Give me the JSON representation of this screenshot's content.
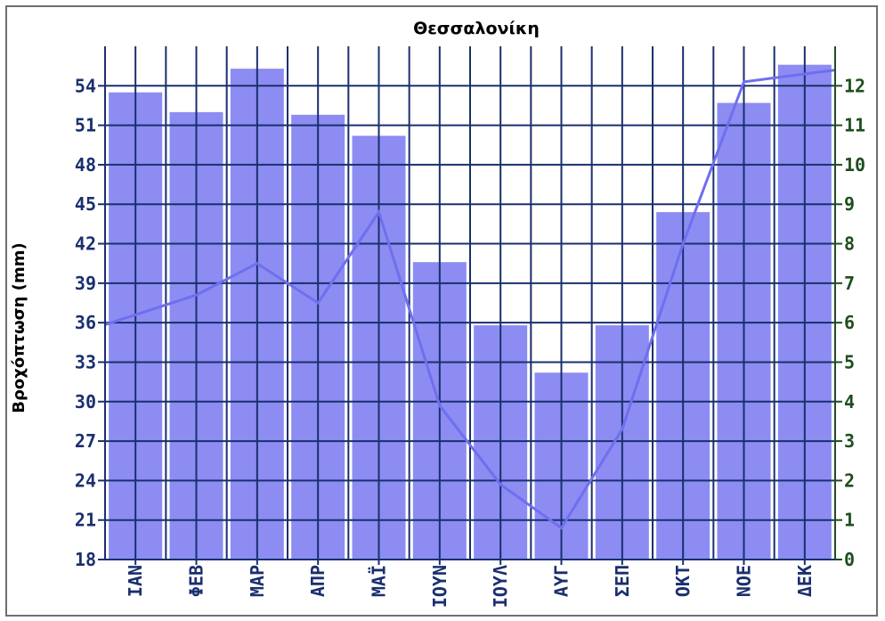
{
  "chart_data": {
    "type": "bar",
    "title": "Θεσσαλονίκη",
    "ylabel": "Βροχόπτωση (mm)",
    "categories": [
      "ΙΑΝ",
      "ΦΕΒ",
      "ΜΑΡ",
      "ΑΠΡ",
      "ΜΑΪ",
      "ΙΟΥΝ",
      "ΙΟΥΛ",
      "ΑΥΓ",
      "ΣΕΠ",
      "ΟΚΤ",
      "ΝΟΕ",
      "ΔΕΚ"
    ],
    "series": [
      {
        "type": "bar",
        "axis": "left",
        "values": [
          53.5,
          52.0,
          55.3,
          51.8,
          50.2,
          40.6,
          35.8,
          32.2,
          35.8,
          44.4,
          52.7,
          55.6
        ]
      },
      {
        "type": "line",
        "axis": "right",
        "values": [
          6.2,
          6.7,
          7.5,
          6.5,
          8.8,
          3.9,
          1.9,
          0.8,
          3.3,
          8.0,
          12.1,
          12.3
        ]
      }
    ],
    "y_left": {
      "ylim": [
        18,
        57
      ],
      "ticks": [
        18,
        21,
        24,
        27,
        30,
        33,
        36,
        39,
        42,
        45,
        48,
        51,
        54
      ]
    },
    "y_right": {
      "ylim": [
        0,
        13
      ],
      "ticks": [
        0,
        1,
        2,
        3,
        4,
        5,
        6,
        7,
        8,
        9,
        10,
        11,
        12
      ]
    },
    "grid": true,
    "colors": {
      "bar": "#8c8cf2",
      "line": "#6f6fee",
      "grid": "#1a2f6e",
      "title": "#1a2f6e",
      "left_axis": "#1a2f6e",
      "right_axis": "#1e4e1e"
    }
  }
}
